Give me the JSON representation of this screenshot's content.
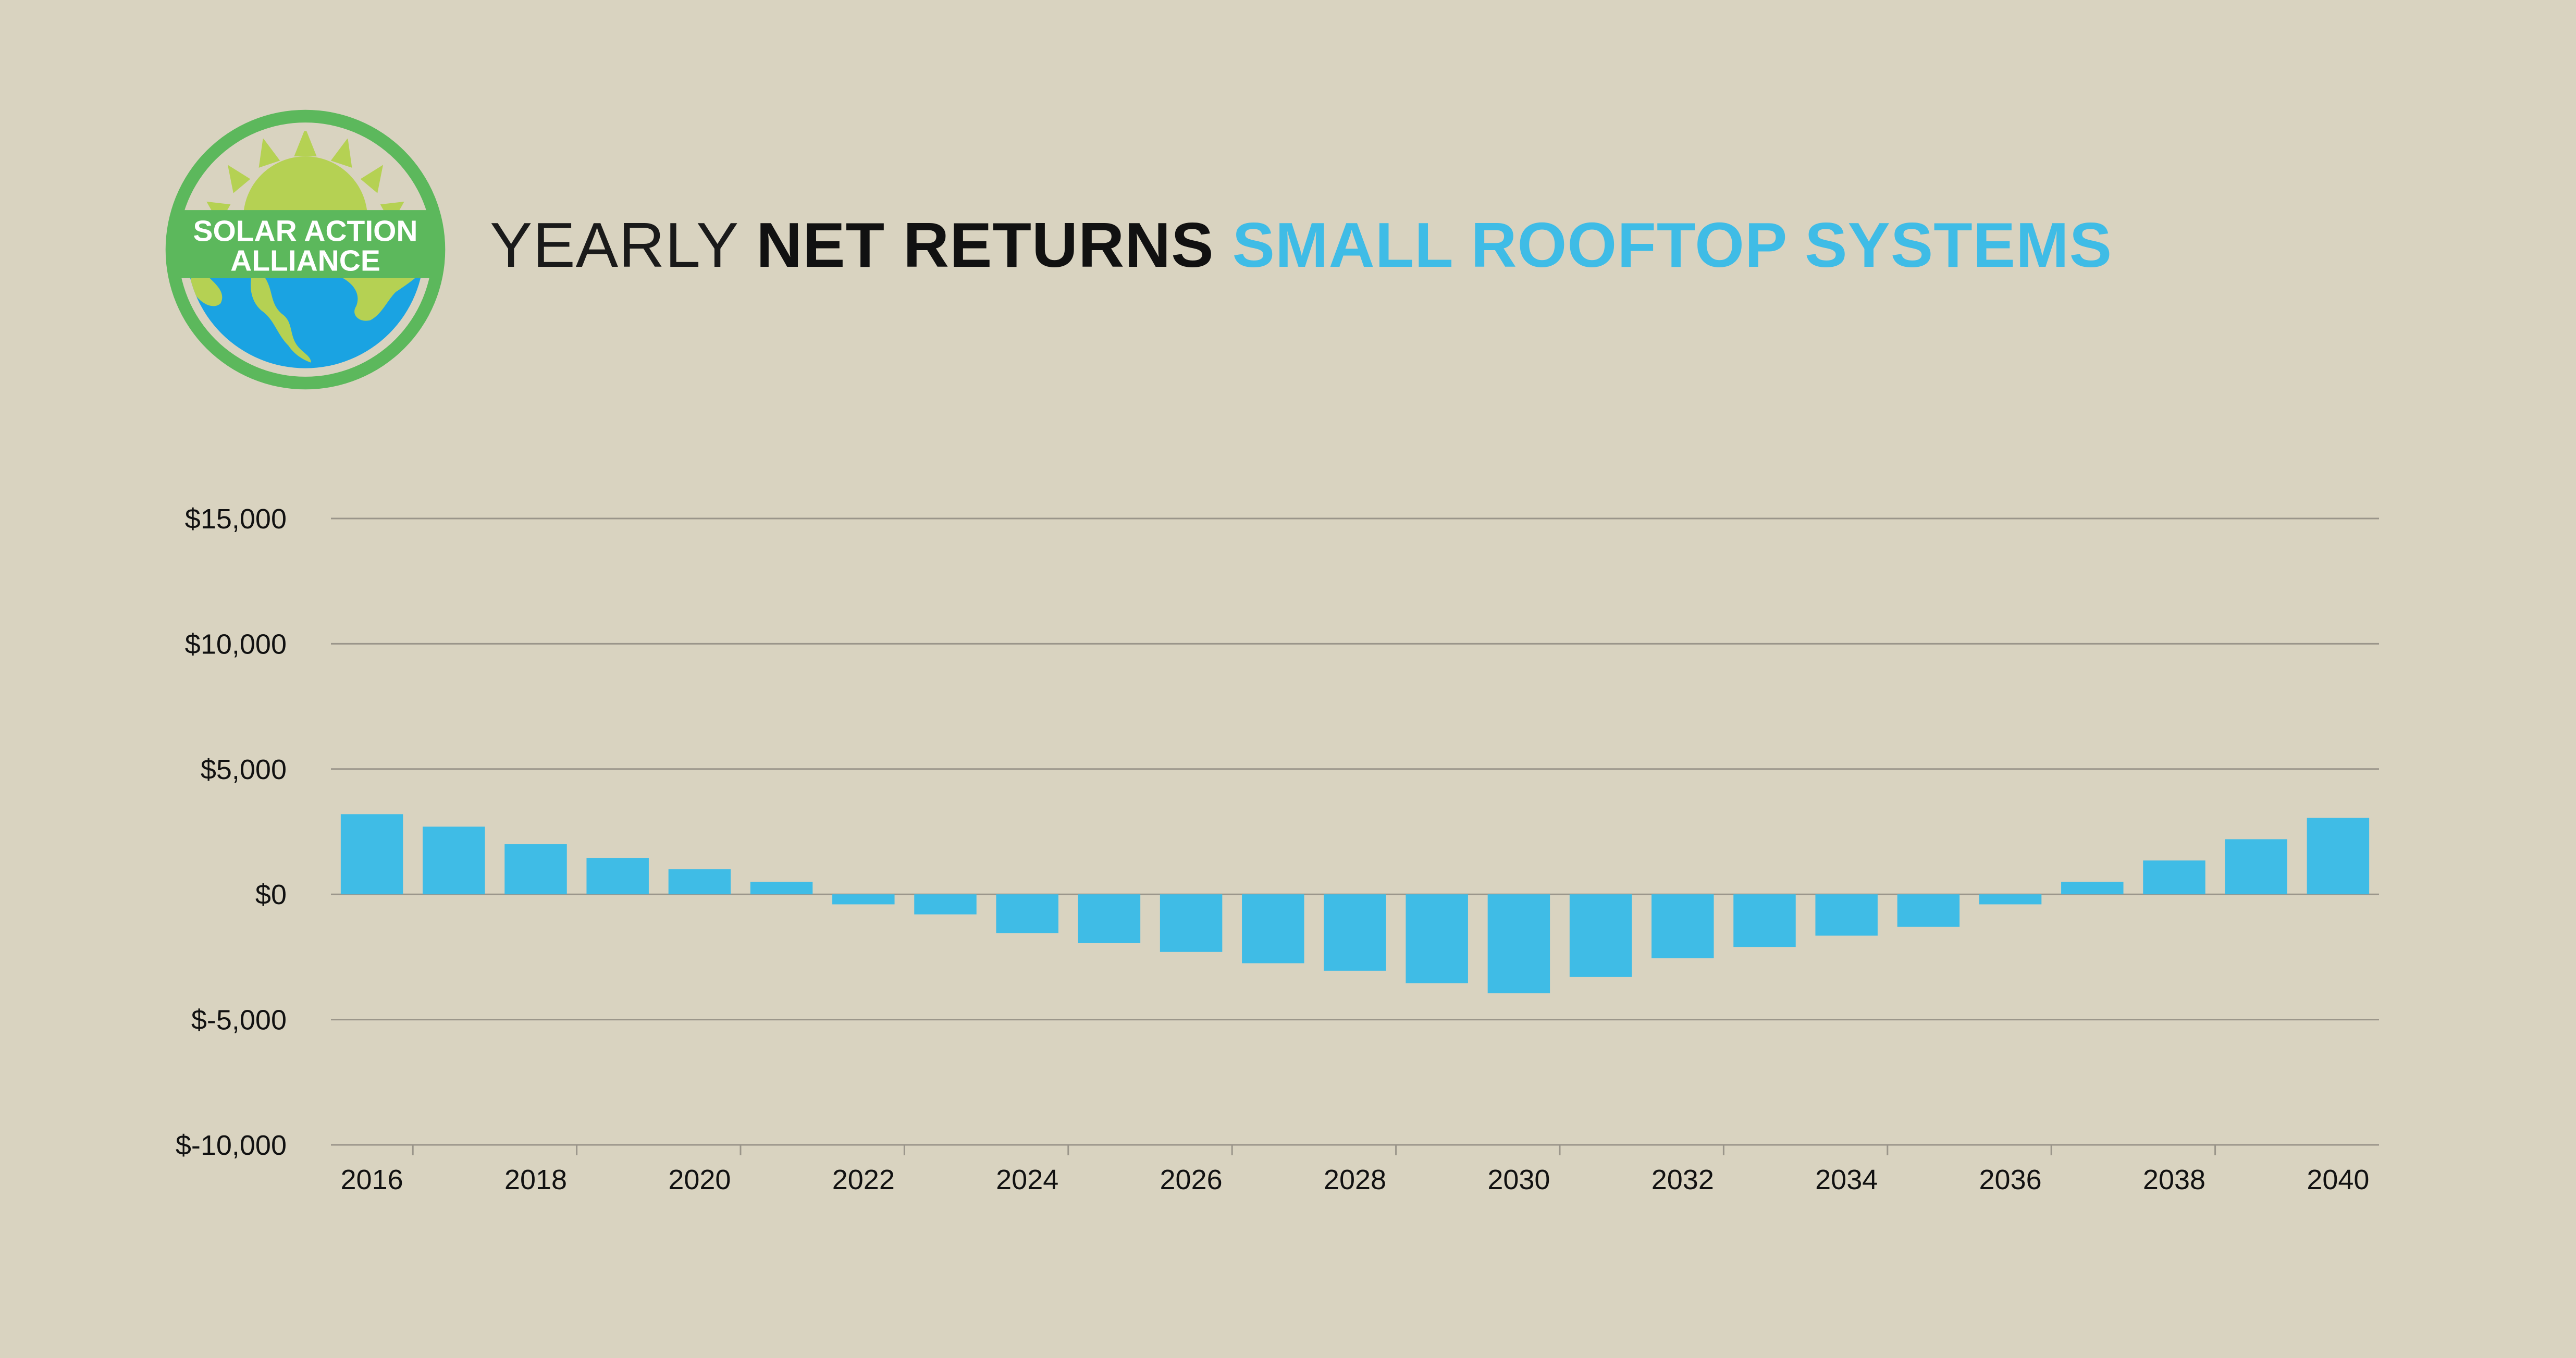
{
  "logo": {
    "text_line1": "SOLAR ACTION",
    "text_line2": "ALLIANCE",
    "colors": {
      "ring": "#5cb85c",
      "band": "#5cb85c",
      "sun": "#b5d153",
      "ocean": "#1aa3e2",
      "land": "#b5d153"
    }
  },
  "title": {
    "part1": "YEARLY ",
    "part2": "NET RETURNS",
    "part3": " SMALL ROOFTOP SYSTEMS"
  },
  "colors": {
    "background": "#d9d3c0",
    "bar": "#3fbce6",
    "grid": "#9a958a",
    "accent": "#3fbce6"
  },
  "chart_data": {
    "type": "bar",
    "categories": [
      "2016",
      "2017",
      "2018",
      "2019",
      "2020",
      "2021",
      "2022",
      "2023",
      "2024",
      "2025",
      "2026",
      "2027",
      "2028",
      "2029",
      "2030",
      "2031",
      "2032",
      "2033",
      "2034",
      "2035",
      "2036",
      "2037",
      "2038",
      "2039",
      "2040"
    ],
    "x_tick_labels": [
      "2016",
      "2018",
      "2020",
      "2022",
      "2024",
      "2026",
      "2028",
      "2030",
      "2032",
      "2034",
      "2036",
      "2038",
      "2040"
    ],
    "values": [
      3200,
      2700,
      2000,
      1450,
      1000,
      500,
      -400,
      -800,
      -1550,
      -1950,
      -2300,
      -2750,
      -3050,
      -3550,
      -3950,
      -3300,
      -2550,
      -2100,
      -1650,
      -1300,
      -400,
      500,
      1350,
      2200,
      3050
    ],
    "ylim": [
      -10000,
      15000
    ],
    "y_ticks": [
      15000,
      10000,
      5000,
      0,
      -5000,
      -10000
    ],
    "y_tick_labels": [
      "$15,000",
      "$10,000",
      "$5,000",
      "$0",
      "$-5,000",
      "$-10,000"
    ],
    "grid": true,
    "xlabel": "",
    "ylabel": ""
  }
}
